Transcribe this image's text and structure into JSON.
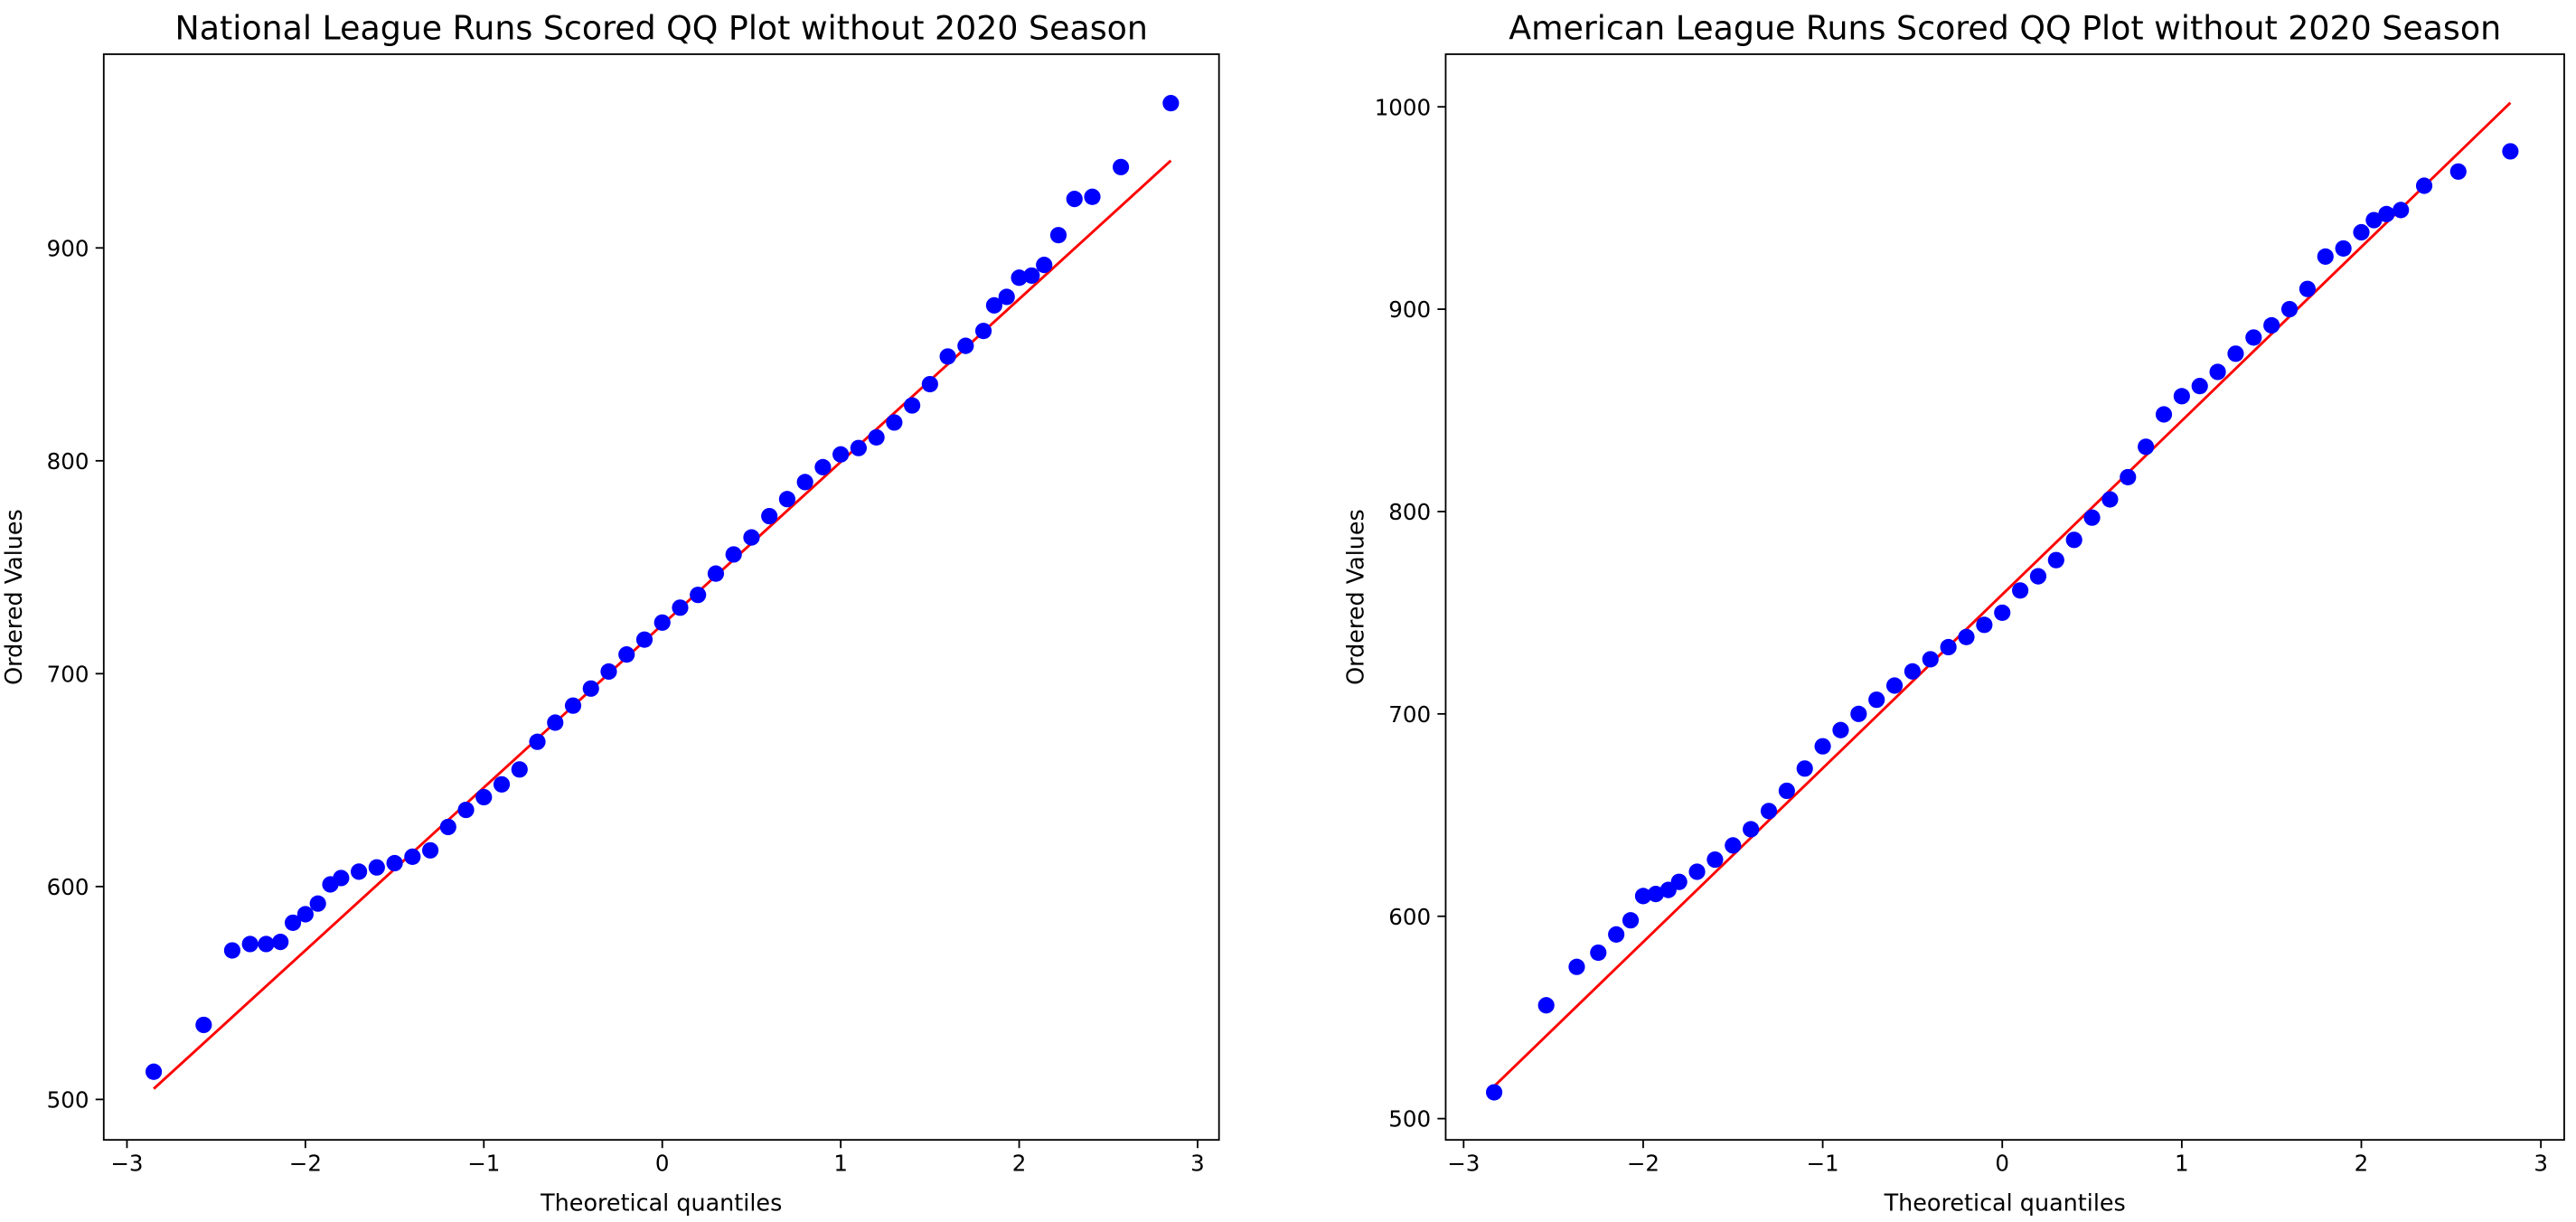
{
  "chart_data": [
    {
      "type": "scatter",
      "title": "National League Runs Scored QQ Plot without 2020 Season",
      "x_label": "Theoretical quantiles",
      "y_label": "Ordered Values",
      "xlim": [
        -3.13,
        3.12
      ],
      "ylim": [
        481,
        991
      ],
      "xticks": [
        {
          "value": -3,
          "label": "−3"
        },
        {
          "value": -2,
          "label": "−2"
        },
        {
          "value": -1,
          "label": "−1"
        },
        0,
        1,
        2,
        3
      ],
      "yticks": [
        500,
        600,
        700,
        800,
        900
      ],
      "series": [
        {
          "color": "#0000ff",
          "x": [
            -2.85,
            -2.57,
            -2.41,
            -2.31,
            -2.22,
            -2.14,
            -2.07,
            -2.0,
            -1.93,
            -1.86,
            -1.8,
            -1.7,
            -1.6,
            -1.5,
            -1.4,
            -1.3,
            -1.2,
            -1.1,
            -1.0,
            -0.9,
            -0.8,
            -0.7,
            -0.6,
            -0.5,
            -0.4,
            -0.3,
            -0.2,
            -0.1,
            0,
            0.1,
            0.2,
            0.3,
            0.4,
            0.5,
            0.6,
            0.7,
            0.8,
            0.9,
            1.0,
            1.1,
            1.2,
            1.3,
            1.4,
            1.5,
            1.6,
            1.7,
            1.8,
            1.86,
            1.93,
            2.0,
            2.07,
            2.14,
            2.22,
            2.31,
            2.41,
            2.57,
            2.85
          ],
          "values": [
            513,
            535,
            570,
            573,
            573,
            574,
            583,
            587,
            592,
            601,
            604,
            607,
            609,
            611,
            614,
            617,
            628,
            636,
            642,
            648,
            655,
            668,
            677,
            685,
            693,
            701,
            709,
            716,
            724,
            731,
            737,
            747,
            756,
            764,
            774,
            782,
            790,
            797,
            803,
            806,
            811,
            818,
            826,
            836,
            849,
            854,
            861,
            873,
            877,
            886,
            887,
            892,
            906,
            923,
            924,
            938,
            968
          ]
        }
      ],
      "fit_line": {
        "color": "#ff0000",
        "x": [
          -2.85,
          2.85
        ],
        "values": [
          505,
          941
        ]
      }
    },
    {
      "type": "scatter",
      "title": "American League Runs Scored QQ Plot without 2020 Season",
      "x_label": "Theoretical quantiles",
      "y_label": "Ordered Values",
      "xlim": [
        -3.1,
        3.13
      ],
      "ylim": [
        489.5,
        1026
      ],
      "xticks": [
        {
          "value": -3,
          "label": "−3"
        },
        {
          "value": -2,
          "label": "−2"
        },
        {
          "value": -1,
          "label": "−1"
        },
        0,
        1,
        2,
        3
      ],
      "yticks": [
        500,
        600,
        700,
        800,
        900,
        1000
      ],
      "series": [
        {
          "color": "#0000ff",
          "x": [
            -2.83,
            -2.54,
            -2.37,
            -2.25,
            -2.15,
            -2.07,
            -2.0,
            -1.93,
            -1.86,
            -1.8,
            -1.7,
            -1.6,
            -1.5,
            -1.4,
            -1.3,
            -1.2,
            -1.1,
            -1.0,
            -0.9,
            -0.8,
            -0.7,
            -0.6,
            -0.5,
            -0.4,
            -0.3,
            -0.2,
            -0.1,
            0,
            0.1,
            0.2,
            0.3,
            0.4,
            0.5,
            0.6,
            0.7,
            0.8,
            0.9,
            1.0,
            1.1,
            1.2,
            1.3,
            1.4,
            1.5,
            1.6,
            1.7,
            1.8,
            1.9,
            2.0,
            2.07,
            2.14,
            2.22,
            2.35,
            2.54,
            2.83
          ],
          "values": [
            513,
            556,
            575,
            582,
            591,
            598,
            610,
            611,
            613,
            617,
            622,
            628,
            635,
            643,
            652,
            662,
            673,
            684,
            692,
            700,
            707,
            714,
            721,
            727,
            733,
            738,
            744,
            750,
            761,
            768,
            776,
            786,
            797,
            806,
            817,
            832,
            848,
            857,
            862,
            869,
            878,
            886,
            892,
            900,
            910,
            926,
            930,
            938,
            944,
            947,
            949,
            961,
            968,
            978
          ]
        }
      ],
      "fit_line": {
        "color": "#ff0000",
        "x": [
          -2.83,
          2.83
        ],
        "values": [
          516,
          1002
        ]
      }
    }
  ]
}
